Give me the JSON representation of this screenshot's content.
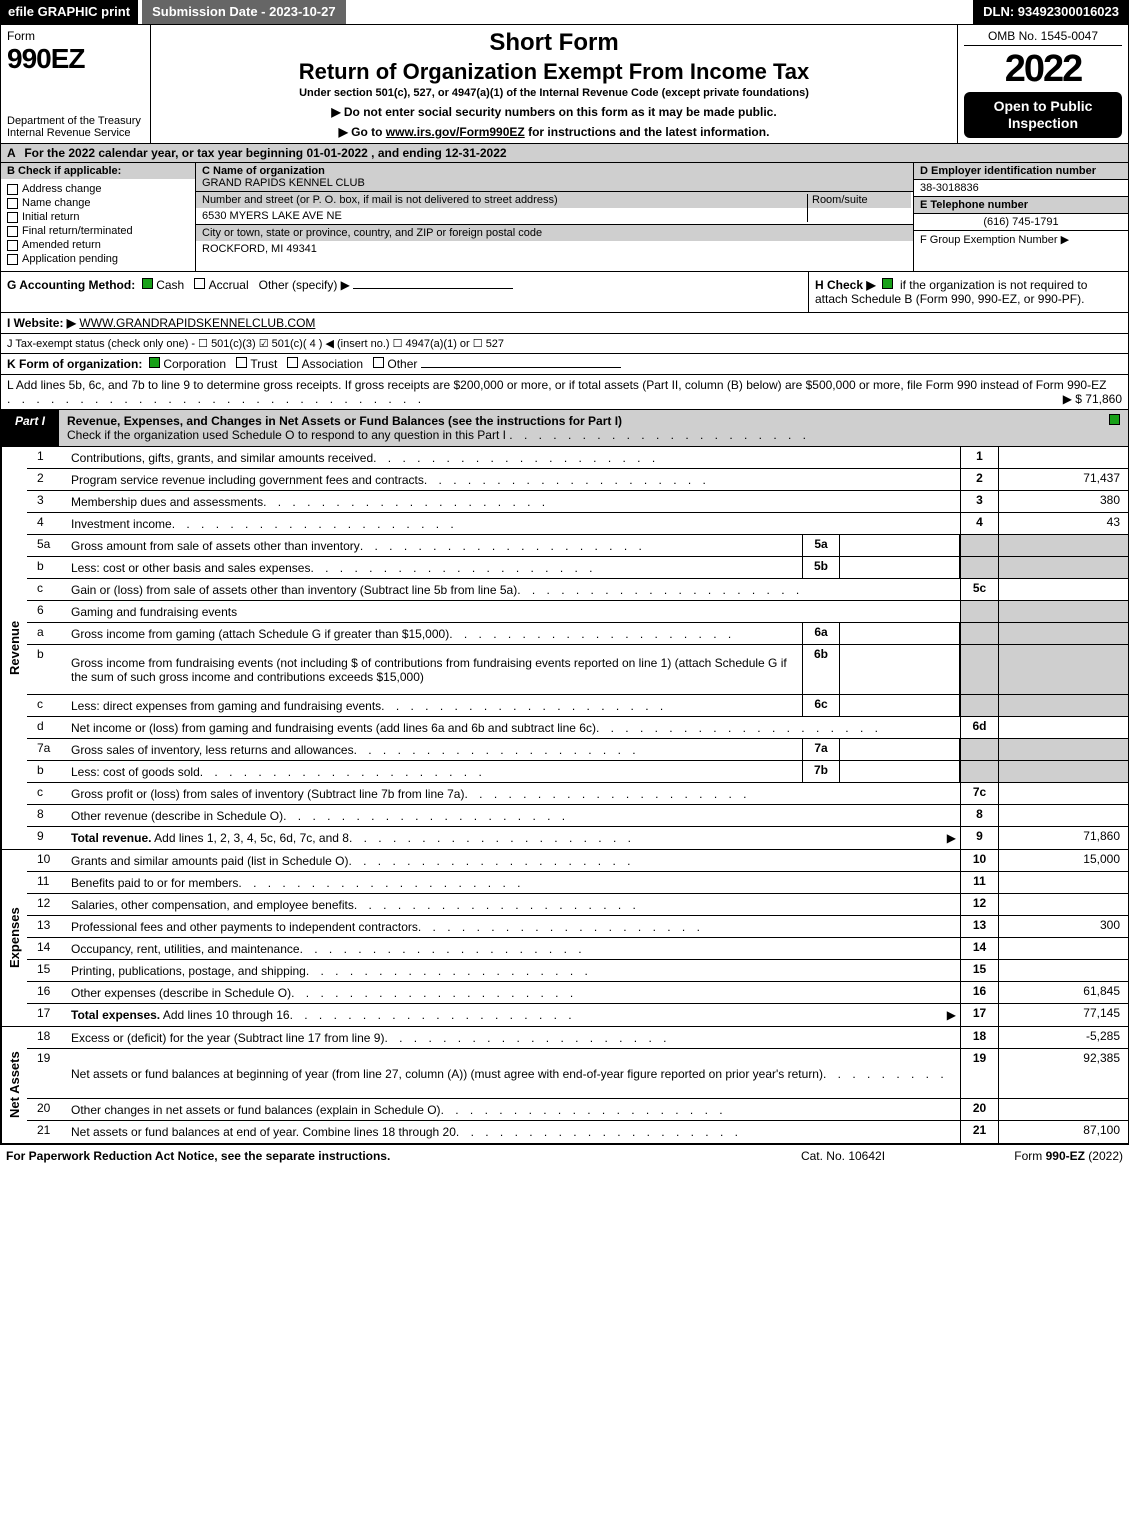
{
  "topbar": {
    "efile": "efile GRAPHIC print",
    "subdate": "Submission Date - 2023-10-27",
    "dln": "DLN: 93492300016023"
  },
  "header": {
    "form_label": "Form",
    "form_num": "990EZ",
    "dept": "Department of the Treasury\nInternal Revenue Service",
    "short_form": "Short Form",
    "return_title": "Return of Organization Exempt From Income Tax",
    "under_sec": "Under section 501(c), 527, or 4947(a)(1) of the Internal Revenue Code (except private foundations)",
    "instr1": "▶ Do not enter social security numbers on this form as it may be made public.",
    "instr2_pre": "▶ Go to ",
    "instr2_link": "www.irs.gov/Form990EZ",
    "instr2_post": " for instructions and the latest information.",
    "omb": "OMB No. 1545-0047",
    "year": "2022",
    "inspect": "Open to Public Inspection"
  },
  "rowA": {
    "text": "For the 2022 calendar year, or tax year beginning 01-01-2022 , and ending 12-31-2022"
  },
  "section_b": {
    "hdr": "B  Check if applicable:",
    "items": [
      "Address change",
      "Name change",
      "Initial return",
      "Final return/terminated",
      "Amended return",
      "Application pending"
    ]
  },
  "section_c": {
    "name_lbl": "C Name of organization",
    "name": "GRAND RAPIDS KENNEL CLUB",
    "addr_lbl": "Number and street (or P. O. box, if mail is not delivered to street address)",
    "addr": "6530 MYERS LAKE AVE NE",
    "room_lbl": "Room/suite",
    "city_lbl": "City or town, state or province, country, and ZIP or foreign postal code",
    "city": "ROCKFORD, MI  49341"
  },
  "right_info": {
    "d_lbl": "D Employer identification number",
    "d_val": "38-3018836",
    "e_lbl": "E Telephone number",
    "e_val": "(616) 745-1791",
    "f_lbl": "F Group Exemption Number   ▶"
  },
  "g_row": {
    "label": "G Accounting Method:",
    "cash": "Cash",
    "accrual": "Accrual",
    "other": "Other (specify) ▶"
  },
  "h_row": {
    "pre": "H  Check ▶",
    "text": "if the organization is not required to attach Schedule B (Form 990, 990-EZ, or 990-PF)."
  },
  "i_row": {
    "label": "I Website: ▶",
    "value": "WWW.GRANDRAPIDSKENNELCLUB.COM"
  },
  "j_row": "J Tax-exempt status (check only one) -  ☐ 501(c)(3)  ☑ 501(c)( 4 ) ◀ (insert no.)  ☐ 4947(a)(1) or  ☐ 527",
  "k_row": {
    "label": "K Form of organization:",
    "corp": "Corporation",
    "trust": "Trust",
    "assoc": "Association",
    "other": "Other"
  },
  "l_row": {
    "text": "L Add lines 5b, 6c, and 7b to line 9 to determine gross receipts. If gross receipts are $200,000 or more, or if total assets (Part II, column (B) below) are $500,000 or more, file Form 990 instead of Form 990-EZ",
    "amount": "▶ $ 71,860"
  },
  "part1": {
    "tab": "Part I",
    "title": "Revenue, Expenses, and Changes in Net Assets or Fund Balances (see the instructions for Part I)",
    "sub": "Check if the organization used Schedule O to respond to any question in this Part I"
  },
  "sections": {
    "revenue": "Revenue",
    "expenses": "Expenses",
    "netassets": "Net Assets"
  },
  "lines": [
    {
      "n": "1",
      "desc": "Contributions, gifts, grants, and similar amounts received",
      "rn": "1",
      "rv": ""
    },
    {
      "n": "2",
      "desc": "Program service revenue including government fees and contracts",
      "rn": "2",
      "rv": "71,437"
    },
    {
      "n": "3",
      "desc": "Membership dues and assessments",
      "rn": "3",
      "rv": "380"
    },
    {
      "n": "4",
      "desc": "Investment income",
      "rn": "4",
      "rv": "43"
    },
    {
      "n": "5a",
      "desc": "Gross amount from sale of assets other than inventory",
      "mn": "5a",
      "mv": "",
      "rn": "",
      "rv": "",
      "shadeR": true
    },
    {
      "n": "b",
      "desc": "Less: cost or other basis and sales expenses",
      "mn": "5b",
      "mv": "",
      "rn": "",
      "rv": "",
      "shadeR": true
    },
    {
      "n": "c",
      "desc": "Gain or (loss) from sale of assets other than inventory (Subtract line 5b from line 5a)",
      "rn": "5c",
      "rv": ""
    },
    {
      "n": "6",
      "desc": "Gaming and fundraising events",
      "rn": "",
      "rv": "",
      "shadeR": true,
      "noValCols": true
    },
    {
      "n": "a",
      "desc": "Gross income from gaming (attach Schedule G if greater than $15,000)",
      "mn": "6a",
      "mv": "",
      "rn": "",
      "rv": "",
      "shadeR": true
    },
    {
      "n": "b",
      "desc": "Gross income from fundraising events (not including $                    of contributions from fundraising events reported on line 1) (attach Schedule G if the sum of such gross income and contributions exceeds $15,000)",
      "mn": "6b",
      "mv": "",
      "rn": "",
      "rv": "",
      "shadeR": true,
      "tall": true
    },
    {
      "n": "c",
      "desc": "Less: direct expenses from gaming and fundraising events",
      "mn": "6c",
      "mv": "",
      "rn": "",
      "rv": "",
      "shadeR": true
    },
    {
      "n": "d",
      "desc": "Net income or (loss) from gaming and fundraising events (add lines 6a and 6b and subtract line 6c)",
      "rn": "6d",
      "rv": ""
    },
    {
      "n": "7a",
      "desc": "Gross sales of inventory, less returns and allowances",
      "mn": "7a",
      "mv": "",
      "rn": "",
      "rv": "",
      "shadeR": true
    },
    {
      "n": "b",
      "desc": "Less: cost of goods sold",
      "mn": "7b",
      "mv": "",
      "rn": "",
      "rv": "",
      "shadeR": true
    },
    {
      "n": "c",
      "desc": "Gross profit or (loss) from sales of inventory (Subtract line 7b from line 7a)",
      "rn": "7c",
      "rv": ""
    },
    {
      "n": "8",
      "desc": "Other revenue (describe in Schedule O)",
      "rn": "8",
      "rv": ""
    },
    {
      "n": "9",
      "desc": "Total revenue. Add lines 1, 2, 3, 4, 5c, 6d, 7c, and 8",
      "rn": "9",
      "rv": "71,860",
      "bold": true,
      "arrow": true
    }
  ],
  "expense_lines": [
    {
      "n": "10",
      "desc": "Grants and similar amounts paid (list in Schedule O)",
      "rn": "10",
      "rv": "15,000"
    },
    {
      "n": "11",
      "desc": "Benefits paid to or for members",
      "rn": "11",
      "rv": ""
    },
    {
      "n": "12",
      "desc": "Salaries, other compensation, and employee benefits",
      "rn": "12",
      "rv": ""
    },
    {
      "n": "13",
      "desc": "Professional fees and other payments to independent contractors",
      "rn": "13",
      "rv": "300"
    },
    {
      "n": "14",
      "desc": "Occupancy, rent, utilities, and maintenance",
      "rn": "14",
      "rv": ""
    },
    {
      "n": "15",
      "desc": "Printing, publications, postage, and shipping",
      "rn": "15",
      "rv": ""
    },
    {
      "n": "16",
      "desc": "Other expenses (describe in Schedule O)",
      "rn": "16",
      "rv": "61,845"
    },
    {
      "n": "17",
      "desc": "Total expenses. Add lines 10 through 16",
      "rn": "17",
      "rv": "77,145",
      "bold": true,
      "arrow": true
    }
  ],
  "netasset_lines": [
    {
      "n": "18",
      "desc": "Excess or (deficit) for the year (Subtract line 17 from line 9)",
      "rn": "18",
      "rv": "-5,285"
    },
    {
      "n": "19",
      "desc": "Net assets or fund balances at beginning of year (from line 27, column (A)) (must agree with end-of-year figure reported on prior year's return)",
      "rn": "19",
      "rv": "92,385",
      "tall": true
    },
    {
      "n": "20",
      "desc": "Other changes in net assets or fund balances (explain in Schedule O)",
      "rn": "20",
      "rv": ""
    },
    {
      "n": "21",
      "desc": "Net assets or fund balances at end of year. Combine lines 18 through 20",
      "rn": "21",
      "rv": "87,100"
    }
  ],
  "footer": {
    "f1": "For Paperwork Reduction Act Notice, see the separate instructions.",
    "f2": "Cat. No. 10642I",
    "f3": "Form 990-EZ (2022)"
  },
  "colors": {
    "shade": "#cfcfcf",
    "black": "#000000",
    "check_green": "#18a018"
  }
}
